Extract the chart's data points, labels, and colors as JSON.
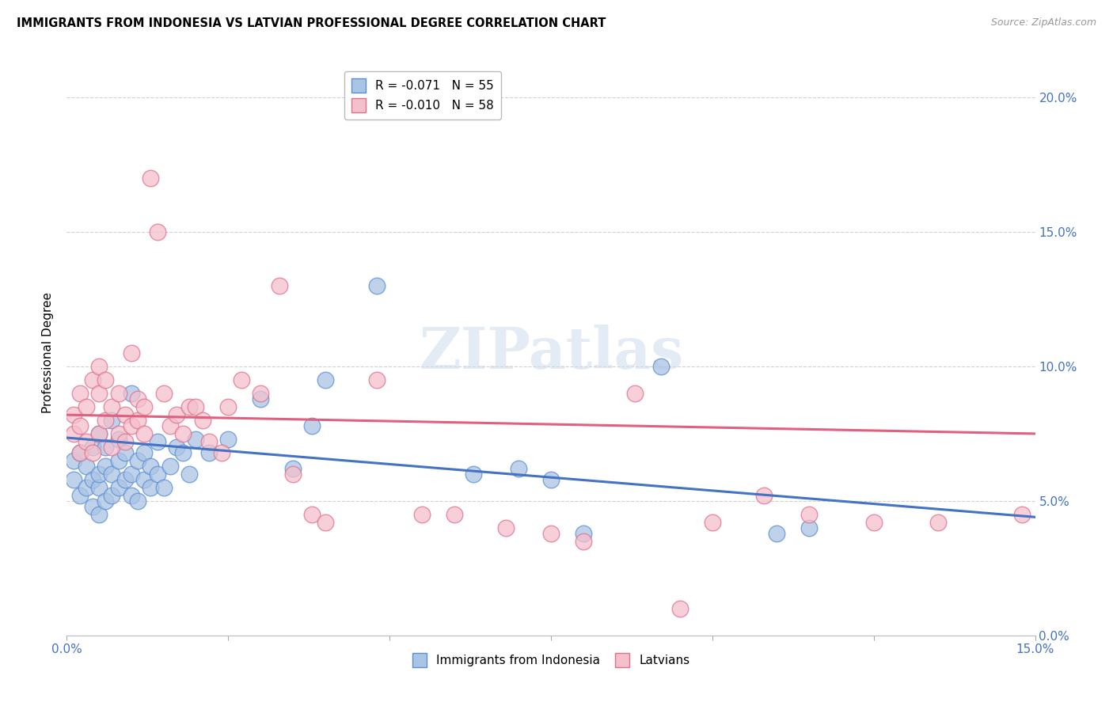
{
  "title": "IMMIGRANTS FROM INDONESIA VS LATVIAN PROFESSIONAL DEGREE CORRELATION CHART",
  "source": "Source: ZipAtlas.com",
  "ylabel": "Professional Degree",
  "xlim": [
    0.0,
    0.15
  ],
  "ylim": [
    0.0,
    0.21
  ],
  "yticks": [
    0.0,
    0.05,
    0.1,
    0.15,
    0.2
  ],
  "xticks": [
    0.0,
    0.025,
    0.05,
    0.075,
    0.1,
    0.125,
    0.15
  ],
  "series1_label": "Immigrants from Indonesia",
  "series1_color": "#aac4e4",
  "series1_edge_color": "#5b8fd4",
  "series1_line_color": "#4472c4",
  "series1_R": "-0.071",
  "series1_N": "55",
  "series2_label": "Latvians",
  "series2_color": "#f4c0cc",
  "series2_edge_color": "#e07090",
  "series2_line_color": "#e06080",
  "series2_R": "-0.010",
  "series2_N": "58",
  "watermark": "ZIPatlas",
  "axis_label_color": "#4472c4",
  "legend_r1_color": "#cc0000",
  "legend_r2_color": "#cc0000",
  "indonesia_x": [
    0.001,
    0.001,
    0.002,
    0.002,
    0.003,
    0.003,
    0.004,
    0.004,
    0.004,
    0.005,
    0.005,
    0.005,
    0.005,
    0.006,
    0.006,
    0.006,
    0.007,
    0.007,
    0.007,
    0.008,
    0.008,
    0.008,
    0.009,
    0.009,
    0.01,
    0.01,
    0.01,
    0.011,
    0.011,
    0.012,
    0.012,
    0.013,
    0.013,
    0.014,
    0.014,
    0.015,
    0.016,
    0.017,
    0.018,
    0.019,
    0.02,
    0.022,
    0.025,
    0.03,
    0.035,
    0.038,
    0.04,
    0.048,
    0.063,
    0.07,
    0.075,
    0.08,
    0.092,
    0.11,
    0.115
  ],
  "indonesia_y": [
    0.058,
    0.065,
    0.052,
    0.068,
    0.055,
    0.063,
    0.048,
    0.058,
    0.07,
    0.045,
    0.055,
    0.06,
    0.075,
    0.05,
    0.063,
    0.07,
    0.052,
    0.06,
    0.08,
    0.055,
    0.065,
    0.073,
    0.058,
    0.068,
    0.052,
    0.06,
    0.09,
    0.05,
    0.065,
    0.058,
    0.068,
    0.055,
    0.063,
    0.06,
    0.072,
    0.055,
    0.063,
    0.07,
    0.068,
    0.06,
    0.073,
    0.068,
    0.073,
    0.088,
    0.062,
    0.078,
    0.095,
    0.13,
    0.06,
    0.062,
    0.058,
    0.038,
    0.1,
    0.038,
    0.04
  ],
  "indonesia_size_mult": [
    1.0,
    1.0,
    1.0,
    1.0,
    1.0,
    1.0,
    1.0,
    1.0,
    1.0,
    1.0,
    1.0,
    1.0,
    1.0,
    1.0,
    1.0,
    1.0,
    1.0,
    1.0,
    1.0,
    1.0,
    1.0,
    1.0,
    1.0,
    1.0,
    1.0,
    1.0,
    1.0,
    1.0,
    1.0,
    1.0,
    1.0,
    1.0,
    1.0,
    1.0,
    1.0,
    1.0,
    1.0,
    1.0,
    1.0,
    1.0,
    1.0,
    1.0,
    1.0,
    1.0,
    1.0,
    1.0,
    1.0,
    1.0,
    1.0,
    1.0,
    1.0,
    1.0,
    1.0,
    1.0,
    1.0
  ],
  "latvian_x": [
    0.001,
    0.001,
    0.002,
    0.002,
    0.002,
    0.003,
    0.003,
    0.004,
    0.004,
    0.005,
    0.005,
    0.005,
    0.006,
    0.006,
    0.007,
    0.007,
    0.008,
    0.008,
    0.009,
    0.009,
    0.01,
    0.01,
    0.011,
    0.011,
    0.012,
    0.012,
    0.013,
    0.014,
    0.015,
    0.016,
    0.017,
    0.018,
    0.019,
    0.02,
    0.021,
    0.022,
    0.024,
    0.025,
    0.027,
    0.03,
    0.033,
    0.035,
    0.038,
    0.04,
    0.048,
    0.055,
    0.06,
    0.068,
    0.075,
    0.08,
    0.088,
    0.095,
    0.1,
    0.108,
    0.115,
    0.125,
    0.135,
    0.148
  ],
  "latvian_y": [
    0.082,
    0.075,
    0.068,
    0.09,
    0.078,
    0.072,
    0.085,
    0.095,
    0.068,
    0.075,
    0.09,
    0.1,
    0.08,
    0.095,
    0.07,
    0.085,
    0.075,
    0.09,
    0.072,
    0.082,
    0.078,
    0.105,
    0.08,
    0.088,
    0.075,
    0.085,
    0.17,
    0.15,
    0.09,
    0.078,
    0.082,
    0.075,
    0.085,
    0.085,
    0.08,
    0.072,
    0.068,
    0.085,
    0.095,
    0.09,
    0.13,
    0.06,
    0.045,
    0.042,
    0.095,
    0.045,
    0.045,
    0.04,
    0.038,
    0.035,
    0.09,
    0.01,
    0.042,
    0.052,
    0.045,
    0.042,
    0.042,
    0.045
  ],
  "trendline_x": [
    0.0,
    0.15
  ],
  "indo_trend_y_start": 0.0735,
  "indo_trend_y_end": 0.044,
  "lat_trend_y_start": 0.082,
  "lat_trend_y_end": 0.075
}
